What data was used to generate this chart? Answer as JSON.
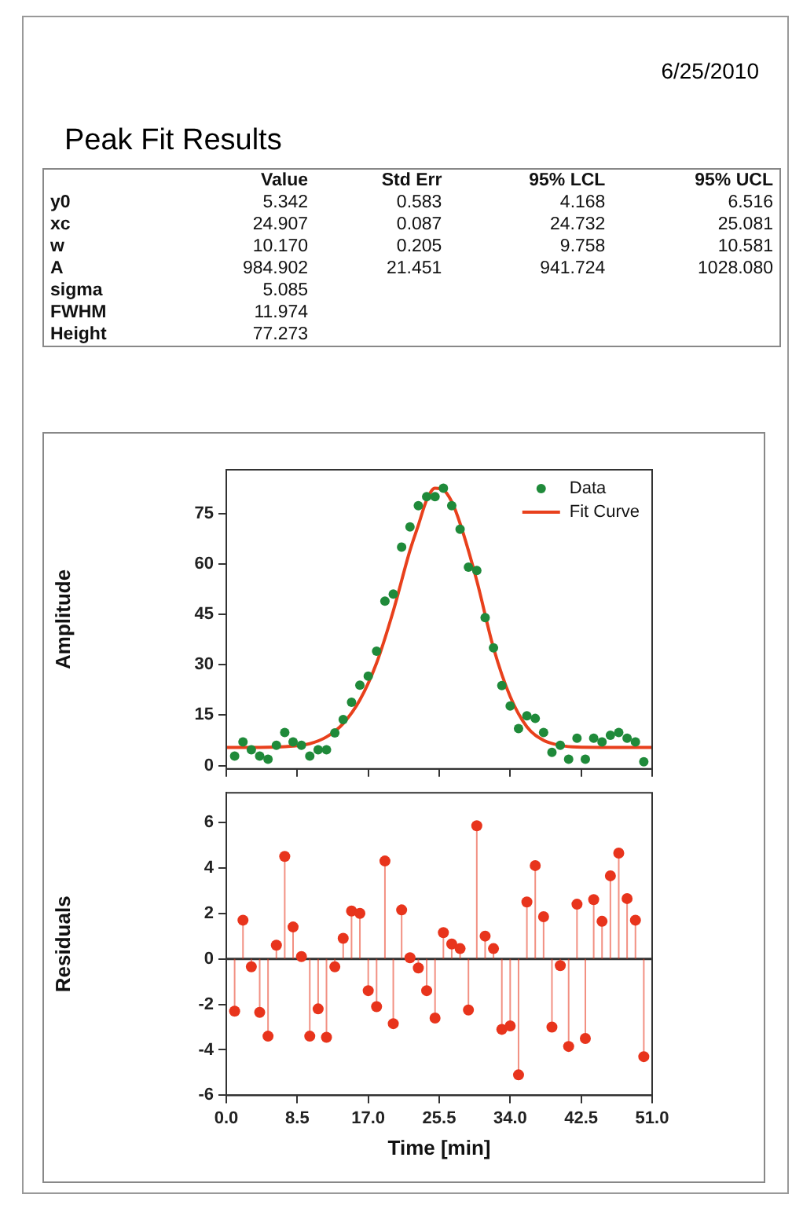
{
  "chart_data": [
    {
      "type": "other",
      "title": "Peak Fit Results",
      "annotations": [
        "6/25/2010"
      ],
      "categories": [
        "Value",
        "Std Err",
        "95% LCL",
        "95% UCL"
      ],
      "y_categories": [
        "y0",
        "xc",
        "w",
        "A",
        "sigma",
        "FWHM",
        "Height"
      ],
      "cell_labels": [
        [
          "5.342",
          "0.583",
          "4.168",
          "6.516"
        ],
        [
          "24.907",
          "0.087",
          "24.732",
          "25.081"
        ],
        [
          "10.170",
          "0.205",
          "9.758",
          "10.581"
        ],
        [
          "984.902",
          "21.451",
          "941.724",
          "1028.080"
        ],
        [
          "5.085",
          null,
          null,
          null
        ],
        [
          "11.974",
          null,
          null,
          null
        ],
        [
          "77.273",
          null,
          null,
          null
        ]
      ]
    },
    {
      "type": "scatter",
      "ylabel": "Amplitude",
      "legend": "top right",
      "tick_labels": "y",
      "xlim": [
        0,
        51
      ],
      "xticks": [
        {
          "value": 0,
          "label": null
        },
        {
          "value": 8.5,
          "label": null
        },
        {
          "value": 17,
          "label": null
        },
        {
          "value": 25.5,
          "label": null
        },
        {
          "value": 34,
          "label": null
        },
        {
          "value": 42.5,
          "label": null
        },
        {
          "value": 51,
          "label": null
        }
      ],
      "ylim": [
        -1,
        88
      ],
      "yticks": [
        0,
        15,
        30,
        45,
        60,
        75
      ],
      "series": [
        {
          "name": "Data",
          "type": "scatter",
          "marker": "circle",
          "color": "#1f8a3a",
          "x": [
            1,
            2,
            3,
            4,
            5,
            6,
            7,
            8,
            9,
            10,
            11,
            12,
            13,
            14,
            15,
            16,
            17,
            18,
            19,
            20,
            21,
            22,
            23,
            24,
            25,
            26,
            27,
            28,
            29,
            30,
            31,
            32,
            33,
            34,
            35,
            36,
            37,
            38,
            39,
            40,
            41,
            42,
            43,
            44,
            45,
            46,
            47,
            48,
            49,
            50
          ],
          "values": [
            2.8,
            7.0,
            4.7,
            2.8,
            1.9,
            6.0,
            9.8,
            7.0,
            6.0,
            2.8,
            4.7,
            4.7,
            9.7,
            13.7,
            18.8,
            23.9,
            26.6,
            34,
            48.9,
            51,
            65,
            71,
            77.3,
            80,
            80,
            82.5,
            77.3,
            70.3,
            59,
            58,
            44,
            35,
            23.8,
            17.7,
            11,
            14.8,
            14,
            9.8,
            3.9,
            6,
            1.9,
            8.1,
            1.9,
            8.1,
            7,
            9,
            9.8,
            8.1,
            7,
            1.1
          ]
        },
        {
          "name": "Fit Curve",
          "type": "line",
          "marker": "none",
          "color": "#e8401c",
          "x": [
            0,
            4,
            8,
            10,
            12,
            14,
            16,
            18,
            20,
            22,
            23,
            24,
            25,
            26,
            27,
            28,
            30,
            32,
            34,
            36,
            38,
            40,
            42,
            46,
            51
          ],
          "values": [
            5.4,
            5.4,
            5.8,
            6.5,
            8.5,
            12.5,
            19.5,
            30.5,
            46,
            64,
            71.5,
            79,
            82.5,
            82,
            78.5,
            72,
            55,
            35,
            20.5,
            11.5,
            7.5,
            6,
            5.5,
            5.4,
            5.4
          ]
        }
      ]
    },
    {
      "type": "lollipop",
      "ylabel": "Residuals",
      "xlabel": "Time [min]",
      "color": "#e8341c",
      "marker": "circle",
      "xlim": [
        0,
        51
      ],
      "xticks": [
        {
          "value": 0,
          "label": "0.0"
        },
        {
          "value": 8.5,
          "label": "8.5"
        },
        {
          "value": 17,
          "label": "17.0"
        },
        {
          "value": 25.5,
          "label": "25.5"
        },
        {
          "value": 34,
          "label": "34.0"
        },
        {
          "value": 42.5,
          "label": "42.5"
        },
        {
          "value": 51,
          "label": "51.0"
        }
      ],
      "ylim": [
        -6,
        7.3
      ],
      "yticks": [
        -6,
        -4,
        -2,
        0,
        2,
        4,
        6
      ],
      "ref_lines": [
        {
          "axis": "y",
          "value": 0,
          "color": "#333333"
        }
      ],
      "x": [
        1,
        2,
        3,
        4,
        5,
        6,
        7,
        8,
        9,
        10,
        11,
        12,
        13,
        14,
        15,
        16,
        17,
        18,
        19,
        20,
        21,
        22,
        23,
        24,
        25,
        26,
        27,
        28,
        29,
        30,
        31,
        32,
        33,
        34,
        35,
        36,
        37,
        38,
        39,
        40,
        41,
        42,
        43,
        44,
        45,
        46,
        47,
        48,
        49,
        50
      ],
      "values": [
        -2.3,
        1.7,
        -0.35,
        -2.35,
        -3.4,
        0.6,
        4.5,
        1.4,
        0.1,
        -3.4,
        -2.2,
        -3.45,
        -0.35,
        0.9,
        2.1,
        2.0,
        -1.4,
        -2.1,
        4.3,
        -2.85,
        2.15,
        0.05,
        -0.4,
        -1.4,
        -2.6,
        1.15,
        0.65,
        0.45,
        -2.25,
        5.85,
        1.0,
        0.45,
        -3.1,
        -2.95,
        -5.1,
        2.5,
        4.1,
        1.85,
        -3.0,
        -0.3,
        -3.85,
        2.4,
        -3.5,
        2.6,
        1.65,
        3.65,
        4.65,
        2.65,
        1.7,
        -4.3
      ]
    }
  ]
}
